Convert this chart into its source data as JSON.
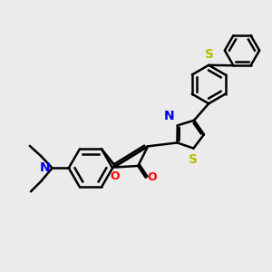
{
  "bg_color": "#ebebeb",
  "bond_color": "#000000",
  "bond_width": 1.8,
  "atom_colors": {
    "N": "#0000ee",
    "O": "#ff0000",
    "S": "#bbbb00",
    "C": "#000000"
  },
  "figsize": [
    3.0,
    3.0
  ],
  "dpi": 100
}
